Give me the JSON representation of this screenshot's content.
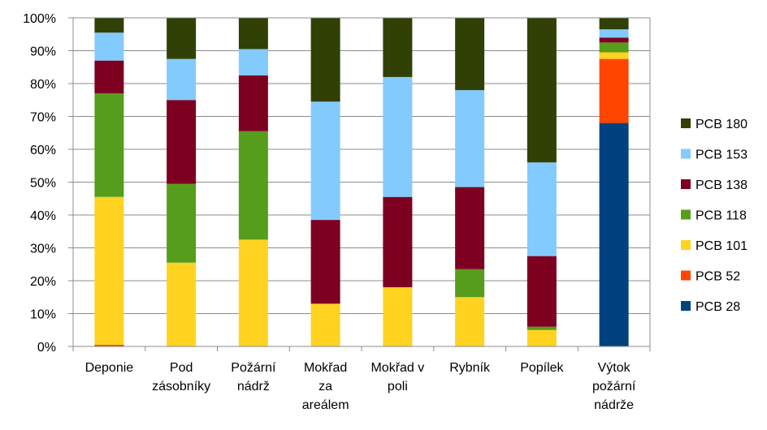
{
  "chart_data": {
    "type": "bar",
    "stacked": true,
    "normalized": true,
    "categories": [
      [
        "Deponie"
      ],
      [
        "Pod",
        "zásobníky"
      ],
      [
        "Požární",
        "nádrž"
      ],
      [
        "Mokřad",
        "za",
        "areálem"
      ],
      [
        "Mokřad v",
        "poli"
      ],
      [
        "Rybník"
      ],
      [
        "Popílek"
      ],
      [
        "Výtok",
        "požární",
        "nádrže"
      ]
    ],
    "yticks": [
      "0%",
      "10%",
      "20%",
      "30%",
      "40%",
      "50%",
      "60%",
      "70%",
      "80%",
      "90%",
      "100%"
    ],
    "ylim": [
      0,
      100
    ],
    "grid": true,
    "legend_position": "right",
    "series": [
      {
        "name": "PCB 28",
        "color": "#00427F",
        "values": [
          0,
          0,
          0,
          0,
          0,
          0,
          0,
          68
        ]
      },
      {
        "name": "PCB 52",
        "color": "#FF4500",
        "values": [
          0.5,
          0,
          0,
          0,
          0,
          0,
          0,
          19.5
        ]
      },
      {
        "name": "PCB 101",
        "color": "#FFD320",
        "values": [
          45,
          25.5,
          32.5,
          13,
          18,
          15,
          5,
          2
        ]
      },
      {
        "name": "PCB 118",
        "color": "#579D1C",
        "values": [
          31.5,
          24,
          33,
          0,
          0,
          8.5,
          1,
          3
        ]
      },
      {
        "name": "PCB 138",
        "color": "#7E0021",
        "values": [
          10,
          25.5,
          17,
          25.5,
          27.5,
          25,
          21.5,
          1.5
        ]
      },
      {
        "name": "PCB 153",
        "color": "#83CAFF",
        "values": [
          8.5,
          12.5,
          8,
          36,
          36.5,
          29.5,
          28.5,
          2.5
        ]
      },
      {
        "name": "PCB 180",
        "color": "#314004",
        "values": [
          4.5,
          12.5,
          9.5,
          25.5,
          18,
          22,
          44,
          3.5
        ]
      }
    ]
  }
}
